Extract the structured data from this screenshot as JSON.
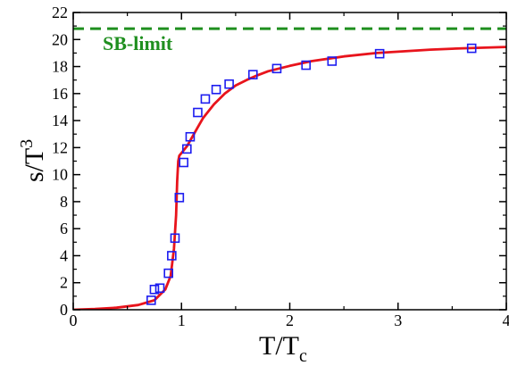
{
  "chart_data": {
    "type": "line",
    "xlabel_main": "T/T",
    "xlabel_sub": "c",
    "ylabel_main": "s/T",
    "ylabel_sup": "3",
    "xlim": [
      0,
      4
    ],
    "ylim": [
      0,
      22
    ],
    "xticks": [
      0,
      1,
      2,
      3,
      4
    ],
    "yticks": [
      0,
      2,
      4,
      6,
      8,
      10,
      12,
      14,
      16,
      18,
      20,
      22
    ],
    "xtick_labels": [
      "0",
      "1",
      "2",
      "3",
      "4"
    ],
    "ytick_labels": [
      "0",
      "2",
      "4",
      "6",
      "8",
      "10",
      "12",
      "14",
      "16",
      "18",
      "20",
      "22"
    ],
    "annotation": "SB-limit",
    "sb_limit": 20.8,
    "colors": {
      "curve": "#e8141c",
      "points": "#1c1cf0",
      "sb_limit": "#1f8f1f"
    },
    "series": [
      {
        "kind": "line",
        "x": [
          0.0,
          0.2,
          0.4,
          0.6,
          0.75,
          0.85,
          0.9,
          0.93,
          0.95,
          0.96,
          0.97,
          0.98,
          1.0,
          1.05,
          1.1,
          1.15,
          1.2,
          1.3,
          1.4,
          1.5,
          1.6,
          1.7,
          1.8,
          2.0,
          2.2,
          2.5,
          2.8,
          3.0,
          3.3,
          3.6,
          4.0
        ],
        "y": [
          0.0,
          0.05,
          0.15,
          0.35,
          0.7,
          1.5,
          2.5,
          4.5,
          7.0,
          9.5,
          11.0,
          11.4,
          11.6,
          12.1,
          12.8,
          13.5,
          14.2,
          15.2,
          16.0,
          16.6,
          17.0,
          17.35,
          17.65,
          18.05,
          18.4,
          18.75,
          19.0,
          19.1,
          19.25,
          19.35,
          19.45
        ]
      },
      {
        "kind": "scatter",
        "x": [
          0.72,
          0.75,
          0.8,
          0.88,
          0.91,
          0.94,
          0.98,
          1.02,
          1.05,
          1.08,
          1.15,
          1.22,
          1.32,
          1.44,
          1.66,
          1.88,
          2.15,
          2.39,
          2.83,
          3.68
        ],
        "y": [
          0.7,
          1.5,
          1.6,
          2.7,
          4.0,
          5.3,
          8.3,
          10.9,
          11.9,
          12.8,
          14.6,
          15.6,
          16.3,
          16.7,
          17.4,
          17.85,
          18.1,
          18.4,
          18.95,
          19.35
        ]
      }
    ]
  }
}
